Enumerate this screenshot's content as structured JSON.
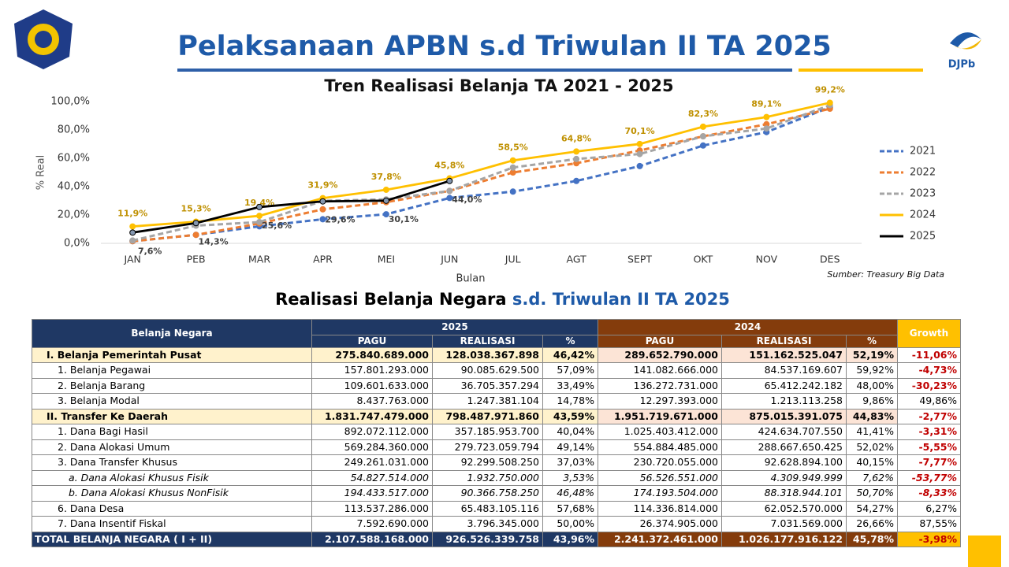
{
  "header": {
    "title": "Pelaksanaan APBN s.d Triwulan II TA 2025",
    "logo_text": "DJPb"
  },
  "chart_data": {
    "type": "line",
    "title": "Tren Realisasi Belanja TA 2021 - 2025",
    "x_label": "Bulan",
    "y_label": "% Real",
    "source": "Sumber: Treasury Big Data",
    "categories": [
      "JAN",
      "PEB",
      "MAR",
      "APR",
      "MEI",
      "JUN",
      "JUL",
      "AGT",
      "SEPT",
      "OKT",
      "NOV",
      "DES"
    ],
    "ylim": [
      0,
      100
    ],
    "yticks": [
      {
        "value": 0,
        "label": "0,0%"
      },
      {
        "value": 20,
        "label": "20,0%"
      },
      {
        "value": 40,
        "label": "40,0%"
      },
      {
        "value": 60,
        "label": "60,0%"
      },
      {
        "value": 80,
        "label": "80,0%"
      },
      {
        "value": 100,
        "label": "100,0%"
      }
    ],
    "grid": false,
    "legend": "right",
    "series": [
      {
        "name": "2021",
        "color": "#4472c4",
        "dashed": true,
        "values": [
          1.5,
          6,
          12,
          17,
          20.5,
          32,
          36.5,
          44,
          54.5,
          69,
          78.5,
          96
        ]
      },
      {
        "name": "2022",
        "color": "#ed7d31",
        "dashed": true,
        "values": [
          1.5,
          6,
          14,
          24,
          29,
          37,
          50,
          56.5,
          65.5,
          75.5,
          84,
          95
        ]
      },
      {
        "name": "2023",
        "color": "#a5a5a5",
        "dashed": true,
        "values": [
          2,
          12.5,
          15,
          30,
          31,
          37,
          53.5,
          59.5,
          63,
          75.5,
          81,
          97.5
        ]
      },
      {
        "name": "2024",
        "color": "#ffc000",
        "dashed": false,
        "values": [
          11.9,
          15.3,
          19.4,
          31.9,
          37.8,
          45.8,
          58.5,
          64.8,
          70.1,
          82.3,
          89.1,
          99.2
        ],
        "value_labels": [
          "11,9%",
          "15,3%",
          "19,4%",
          "31,9%",
          "37,8%",
          "45,8%",
          "58,5%",
          "64,8%",
          "70,1%",
          "82,3%",
          "89,1%",
          "99,2%"
        ]
      },
      {
        "name": "2025",
        "color": "#000000",
        "dashed": false,
        "values": [
          7.6,
          14.3,
          25.6,
          29.6,
          30.1,
          44.0,
          null,
          null,
          null,
          null,
          null,
          null
        ],
        "value_labels": [
          "7,6%",
          "14,3%",
          "25,6%",
          "29,6%",
          "30,1%",
          "44,0%",
          null,
          null,
          null,
          null,
          null,
          null
        ]
      }
    ]
  },
  "table": {
    "title_a": "Realisasi Belanja Negara",
    "title_b": "s.d. Triwulan II TA 2025",
    "head": {
      "label": "Belanja Negara",
      "y1": "2025",
      "y2": "2024",
      "growth": "Growth",
      "cols": [
        "PAGU",
        "REALISASI",
        "%",
        "PAGU",
        "REALISASI",
        "%"
      ]
    },
    "rows": [
      [
        "I. Belanja Pemerintah Pusat",
        "275.840.689.000",
        "128.038.367.898",
        "46,42%",
        "289.652.790.000",
        "151.162.525.047",
        "52,19%",
        "-11,06%"
      ],
      [
        "1. Belanja Pegawai",
        "157.801.293.000",
        "90.085.629.500",
        "57,09%",
        "141.082.666.000",
        "84.537.169.607",
        "59,92%",
        "-4,73%"
      ],
      [
        "2. Belanja Barang",
        "109.601.633.000",
        "36.705.357.294",
        "33,49%",
        "136.272.731.000",
        "65.412.242.182",
        "48,00%",
        "-30,23%"
      ],
      [
        "3. Belanja Modal",
        "8.437.763.000",
        "1.247.381.104",
        "14,78%",
        "12.297.393.000",
        "1.213.113.258",
        "9,86%",
        "49,86%"
      ],
      [
        "II. Transfer Ke Daerah",
        "1.831.747.479.000",
        "798.487.971.860",
        "43,59%",
        "1.951.719.671.000",
        "875.015.391.075",
        "44,83%",
        "-2,77%"
      ],
      [
        "1. Dana Bagi Hasil",
        "892.072.112.000",
        "357.185.953.700",
        "40,04%",
        "1.025.403.412.000",
        "424.634.707.550",
        "41,41%",
        "-3,31%"
      ],
      [
        "2. Dana Alokasi Umum",
        "569.284.360.000",
        "279.723.059.794",
        "49,14%",
        "554.884.485.000",
        "288.667.650.425",
        "52,02%",
        "-5,55%"
      ],
      [
        "3. Dana Transfer Khusus",
        "249.261.031.000",
        "92.299.508.250",
        "37,03%",
        "230.720.055.000",
        "92.628.894.100",
        "40,15%",
        "-7,77%"
      ],
      [
        "a. Dana Alokasi Khusus Fisik",
        "54.827.514.000",
        "1.932.750.000",
        "3,53%",
        "56.526.551.000",
        "4.309.949.999",
        "7,62%",
        "-53,77%"
      ],
      [
        "b. Dana Alokasi Khusus NonFisik",
        "194.433.517.000",
        "90.366.758.250",
        "46,48%",
        "174.193.504.000",
        "88.318.944.101",
        "50,70%",
        "-8,33%"
      ],
      [
        "6. Dana Desa",
        "113.537.286.000",
        "65.483.105.116",
        "57,68%",
        "114.336.814.000",
        "62.052.570.000",
        "54,27%",
        "6,27%"
      ],
      [
        "7. Dana Insentif Fiskal",
        "7.592.690.000",
        "3.796.345.000",
        "50,00%",
        "26.374.905.000",
        "7.031.569.000",
        "26,66%",
        "87,55%"
      ]
    ],
    "total": [
      "TOTAL BELANJA NEGARA ( I + II)",
      "2.107.588.168.000",
      "926.526.339.758",
      "43,96%",
      "2.241.372.461.000",
      "1.026.177.916.122",
      "45,78%",
      "-3,98%"
    ]
  }
}
